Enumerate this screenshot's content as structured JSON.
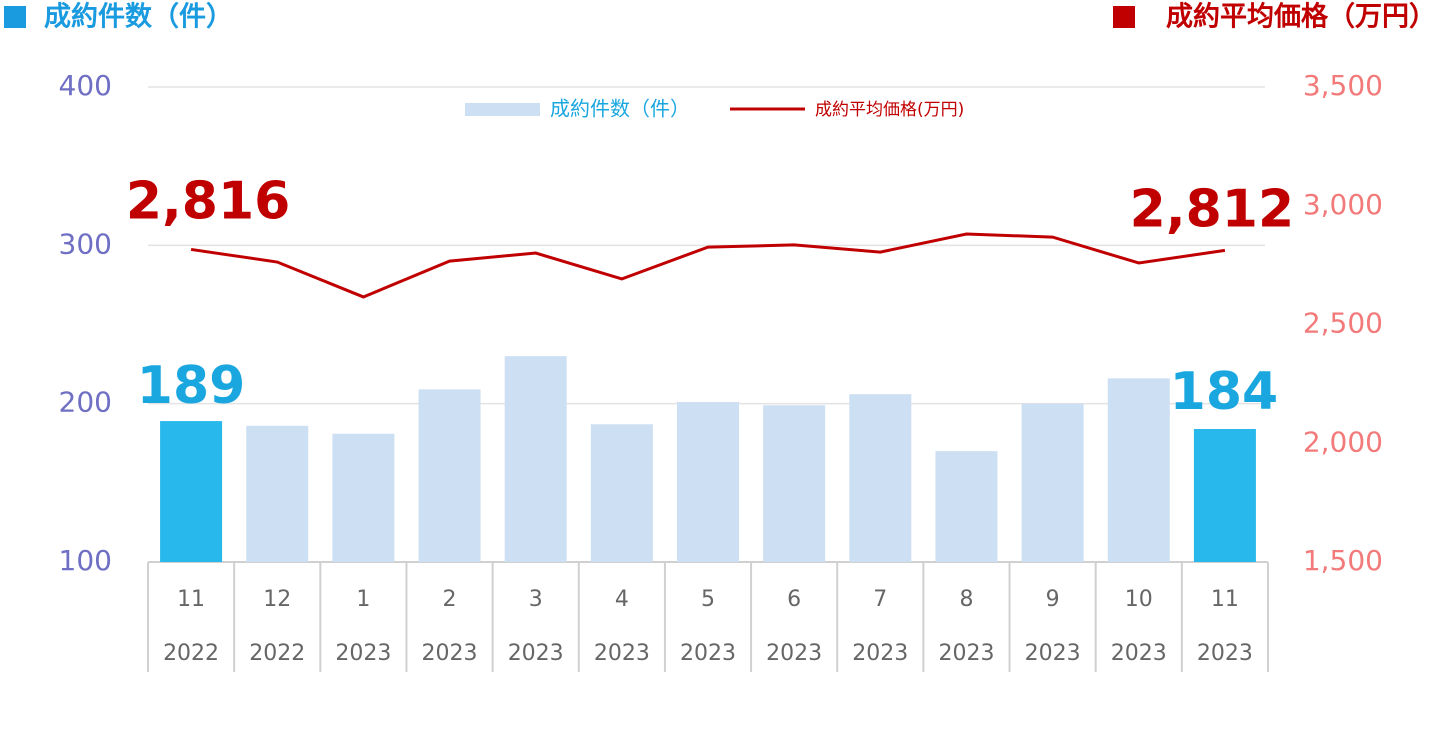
{
  "chart_data": {
    "type": "bar-line",
    "left_axis_title": "成約件数（件）",
    "right_axis_title": "成約平均価格（万円）",
    "categories": [
      [
        "11",
        "2022"
      ],
      [
        "12",
        "2022"
      ],
      [
        "1",
        "2023"
      ],
      [
        "2",
        "2023"
      ],
      [
        "3",
        "2023"
      ],
      [
        "4",
        "2023"
      ],
      [
        "5",
        "2023"
      ],
      [
        "6",
        "2023"
      ],
      [
        "7",
        "2023"
      ],
      [
        "8",
        "2023"
      ],
      [
        "9",
        "2023"
      ],
      [
        "10",
        "2023"
      ],
      [
        "11",
        "2023"
      ]
    ],
    "series": [
      {
        "name": "成約件数（件）",
        "type": "bar",
        "axis": "y",
        "values": [
          189,
          186,
          181,
          209,
          230,
          187,
          201,
          199,
          206,
          170,
          200,
          216,
          184
        ],
        "value_labels": [
          "189",
          null,
          null,
          null,
          null,
          null,
          null,
          null,
          null,
          null,
          null,
          null,
          "184"
        ],
        "colors": [
          "#29b8ec",
          "#cddff3",
          "#cddff3",
          "#cddff3",
          "#cddff3",
          "#cddff3",
          "#cddff3",
          "#cddff3",
          "#cddff3",
          "#cddff3",
          "#cddff3",
          "#cddff3",
          "#29b8ec"
        ],
        "label_color": "#1aa7e0"
      },
      {
        "name": "成約平均価格(万円)",
        "type": "line",
        "axis": "y2",
        "color": "#c00000",
        "values": [
          2816,
          2763,
          2616,
          2767,
          2801,
          2692,
          2826,
          2835,
          2805,
          2881,
          2868,
          2759,
          2812
        ],
        "value_labels": [
          "2,816",
          null,
          null,
          null,
          null,
          null,
          null,
          null,
          null,
          null,
          null,
          null,
          "2,812"
        ]
      }
    ],
    "ylim": [
      100,
      400
    ],
    "yticks": [
      100,
      200,
      300,
      400
    ],
    "y2lim": [
      1500,
      3500
    ],
    "y2ticks": [
      {
        "value": 1500,
        "label": "1,500"
      },
      {
        "value": 2000,
        "label": "2,000"
      },
      {
        "value": 2500,
        "label": "2,500"
      },
      {
        "value": 3000,
        "label": "3,000"
      },
      {
        "value": 3500,
        "label": "3,500"
      }
    ],
    "grid": true
  }
}
